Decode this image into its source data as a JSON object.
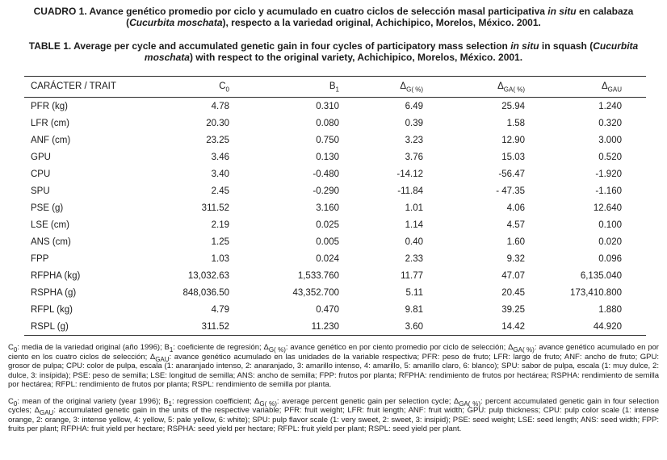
{
  "titles": {
    "spanish_segments": [
      {
        "t": "CUADRO 1. Avance genético promedio por ciclo y acumulado en cuatro ciclos de selección masal participativa "
      },
      {
        "t": "in situ",
        "i": true
      },
      {
        "t": " en calabaza ("
      },
      {
        "t": "Cucurbita moschata",
        "i": true
      },
      {
        "t": "), respecto a la variedad original, Achichipico, Morelos, México. 2001."
      }
    ],
    "english_segments": [
      {
        "t": "TABLE 1. Average per cycle and accumulated genetic gain in four cycles of participatory mass selection "
      },
      {
        "t": "in situ",
        "i": true
      },
      {
        "t": " in squash ("
      },
      {
        "t": "Cucurbita moschata",
        "i": true
      },
      {
        "t": ") with respect to the original variety, Achichipico, Morelos, México. 2001."
      }
    ]
  },
  "table": {
    "header": [
      [
        {
          "t": "CARÁCTER / TRAIT"
        }
      ],
      [
        {
          "t": "C"
        },
        {
          "t": "0",
          "s": true
        }
      ],
      [
        {
          "t": "B"
        },
        {
          "t": "1",
          "s": true
        }
      ],
      [
        {
          "t": "Δ"
        },
        {
          "t": "G( %)",
          "s": true
        }
      ],
      [
        {
          "t": "Δ"
        },
        {
          "t": "GA( %)",
          "s": true
        }
      ],
      [
        {
          "t": "Δ"
        },
        {
          "t": "GAU",
          "s": true
        }
      ]
    ],
    "rows": [
      {
        "trait": "PFR (kg)",
        "values": [
          "4.78",
          "0.310",
          "6.49",
          "25.94",
          "1.240"
        ]
      },
      {
        "trait": "LFR (cm)",
        "values": [
          "20.30",
          "0.080",
          "0.39",
          "1.58",
          "0.320"
        ]
      },
      {
        "trait": "ANF (cm)",
        "values": [
          "23.25",
          "0.750",
          "3.23",
          "12.90",
          "3.000"
        ]
      },
      {
        "trait": "GPU",
        "values": [
          "3.46",
          "0.130",
          "3.76",
          "15.03",
          "0.520"
        ]
      },
      {
        "trait": "CPU",
        "values": [
          "3.40",
          "-0.480",
          "-14.12",
          "-56.47",
          "-1.920"
        ]
      },
      {
        "trait": "SPU",
        "values": [
          "2.45",
          "-0.290",
          "-11.84",
          "- 47.35",
          "-1.160"
        ]
      },
      {
        "trait": "PSE (g)",
        "values": [
          "311.52",
          "3.160",
          "1.01",
          "4.06",
          "12.640"
        ]
      },
      {
        "trait": "LSE (cm)",
        "values": [
          "2.19",
          "0.025",
          "1.14",
          "4.57",
          "0.100"
        ]
      },
      {
        "trait": "ANS (cm)",
        "values": [
          "1.25",
          "0.005",
          "0.40",
          "1.60",
          "0.020"
        ]
      },
      {
        "trait": "FPP",
        "values": [
          "1.03",
          "0.024",
          "2.33",
          "9.32",
          "0.096"
        ]
      },
      {
        "trait": "RFPHA (kg)",
        "values": [
          "13,032.63",
          "1,533.760",
          "11.77",
          "47.07",
          "6,135.040"
        ]
      },
      {
        "trait": "RSPHA (g)",
        "values": [
          "848,036.50",
          "43,352.700",
          "5.11",
          "20.45",
          "173,410.800"
        ]
      },
      {
        "trait": "RFPL (kg)",
        "values": [
          "4.79",
          "0.470",
          "9.81",
          "39.25",
          "1.880"
        ]
      },
      {
        "trait": "RSPL (g)",
        "values": [
          "311.52",
          "11.230",
          "3.60",
          "14.42",
          "44.920"
        ]
      }
    ]
  },
  "footnotes": {
    "spanish_segments": [
      {
        "t": "C"
      },
      {
        "t": "0",
        "s": true
      },
      {
        "t": ": media de la variedad original (año 1996); B"
      },
      {
        "t": "1",
        "s": true
      },
      {
        "t": ": coeficiente de regresión; Δ"
      },
      {
        "t": "G( %)",
        "s": true
      },
      {
        "t": ": avance genético en por ciento promedio por ciclo de selección; Δ"
      },
      {
        "t": "GA( %)",
        "s": true
      },
      {
        "t": ": avance genético acumulado en por ciento en los cuatro ciclos de selección; Δ"
      },
      {
        "t": "GAU",
        "s": true
      },
      {
        "t": ": avance genético acumulado en las unidades de la variable respectiva; PFR: peso de fruto; LFR: largo de fruto; ANF: ancho de fruto; GPU: grosor de pulpa; CPU: color de pulpa, escala (1: anaranjado intenso, 2: anaranjado, 3: amarillo intenso, 4: amarillo, 5: amarillo claro, 6: blanco); SPU: sabor de pulpa, escala (1: muy dulce, 2: dulce, 3: insípida); PSE: peso de semilla; LSE: longitud de semilla; ANS: ancho de semilla; FPP: frutos por planta; RFPHA: rendimiento de frutos por hectárea; RSPHA: rendimiento de semilla por hectárea; RFPL: rendimiento de frutos por planta; RSPL: rendimiento de semilla por planta."
      }
    ],
    "english_segments": [
      {
        "t": "C"
      },
      {
        "t": "0",
        "s": true
      },
      {
        "t": ": mean of the original variety (year 1996); B"
      },
      {
        "t": "1",
        "s": true
      },
      {
        "t": ": regression coefficient; Δ"
      },
      {
        "t": "G( %)",
        "s": true
      },
      {
        "t": ": average percent genetic gain per selection cycle; Δ"
      },
      {
        "t": "GA( %)",
        "s": true
      },
      {
        "t": ": percent accumulated genetic gain in four selection cycles; Δ"
      },
      {
        "t": "GAU",
        "s": true
      },
      {
        "t": ": accumulated genetic gain in the units of the respective variable; PFR: fruit weight; LFR: fruit length; ANF: fruit width; GPU: pulp thickness; CPU: pulp color scale (1: intense orange, 2: orange, 3: intense yellow, 4: yellow, 5: pale yellow, 6: white); SPU: pulp flavor scale (1: very sweet, 2: sweet, 3: insipid); PSE: seed weight; LSE: seed length; ANS: seed width; FPP: fruits per plant; RFPHA: fruit yield per hectare; RSPHA: seed yield per hectare; RFPL: fruit yield per plant; RSPL: seed yield per plant."
      }
    ]
  }
}
